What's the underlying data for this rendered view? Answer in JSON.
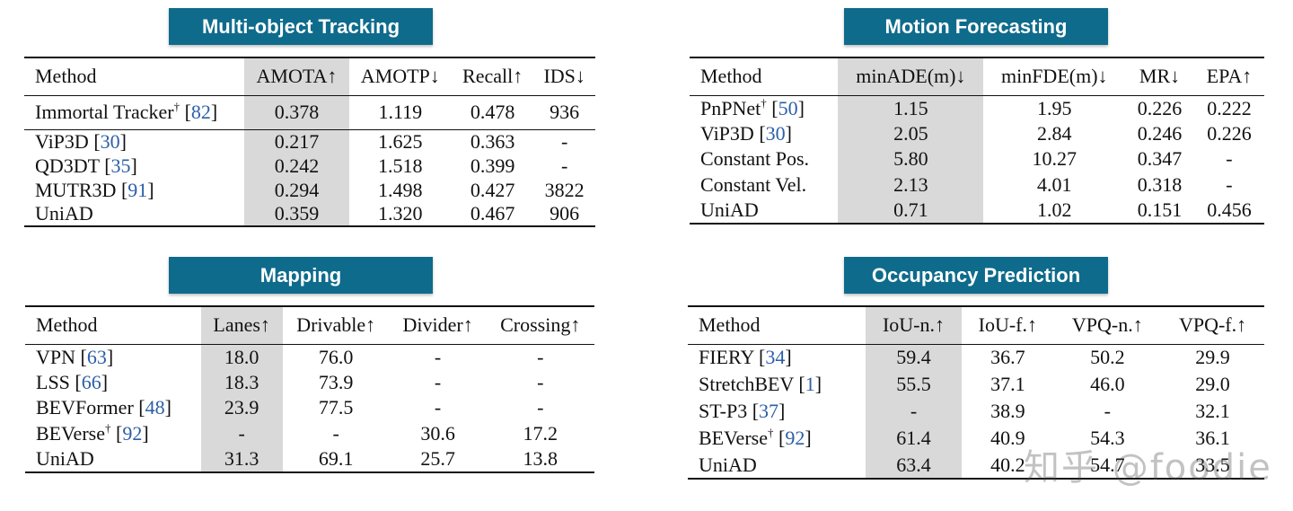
{
  "panels": {
    "tracking": {
      "title": "Multi-object Tracking",
      "headers": [
        "Method",
        "AMOTA↑",
        "AMOTP↓",
        "Recall↑",
        "IDS↓"
      ],
      "group1": [
        {
          "method": "Immortal Tracker",
          "sup": "†",
          "ref": "82",
          "vals": [
            "0.378",
            "1.119",
            "0.478",
            "936"
          ]
        }
      ],
      "group2": [
        {
          "method": "ViP3D",
          "ref": "30",
          "vals": [
            "0.217",
            "1.625",
            "0.363",
            "-"
          ]
        },
        {
          "method": "QD3DT",
          "ref": "35",
          "vals": [
            "0.242",
            "1.518",
            "0.399",
            "-"
          ]
        },
        {
          "method": "MUTR3D",
          "ref": "91",
          "vals": [
            "0.294",
            "1.498",
            "0.427",
            "3822"
          ]
        },
        {
          "method": "UniAD",
          "vals": [
            "0.359",
            "1.320",
            "0.467",
            "906"
          ],
          "bold": true
        }
      ]
    },
    "forecasting": {
      "title": "Motion Forecasting",
      "headers": [
        "Method",
        "minADE(m)↓",
        "minFDE(m)↓",
        "MR↓",
        "EPA↑"
      ],
      "rows": [
        {
          "method": "PnPNet",
          "sup": "†",
          "ref": "50",
          "vals": [
            "1.15",
            "1.95",
            "0.226",
            "0.222"
          ]
        },
        {
          "method": "ViP3D",
          "ref": "30",
          "vals": [
            "2.05",
            "2.84",
            "0.246",
            "0.226"
          ]
        },
        {
          "method": "Constant Pos.",
          "vals": [
            "5.80",
            "10.27",
            "0.347",
            "-"
          ]
        },
        {
          "method": "Constant Vel.",
          "vals": [
            "2.13",
            "4.01",
            "0.318",
            "-"
          ]
        },
        {
          "method": "UniAD",
          "vals": [
            "0.71",
            "1.02",
            "0.151",
            "0.456"
          ],
          "bold": true
        }
      ]
    },
    "mapping": {
      "title": "Mapping",
      "headers": [
        "Method",
        "Lanes↑",
        "Drivable↑",
        "Divider↑",
        "Crossing↑"
      ],
      "rows": [
        {
          "method": "VPN",
          "ref": "63",
          "vals": [
            "18.0",
            "76.0",
            "-",
            "-"
          ]
        },
        {
          "method": "LSS",
          "ref": "66",
          "vals": [
            "18.3",
            "73.9",
            "-",
            "-"
          ]
        },
        {
          "method": "BEVFormer",
          "ref": "48",
          "vals": [
            "23.9",
            "77.5",
            "-",
            "-"
          ],
          "boldcols": [
            1
          ]
        },
        {
          "method": "BEVerse",
          "sup": "†",
          "ref": "92",
          "vals": [
            "-",
            "-",
            "30.6",
            "17.2"
          ],
          "boldcols": [
            2,
            3
          ]
        },
        {
          "method": "UniAD",
          "vals": [
            "31.3",
            "69.1",
            "25.7",
            "13.8"
          ],
          "bold": true,
          "boldcols": [
            0
          ]
        }
      ]
    },
    "occupancy": {
      "title": "Occupancy Prediction",
      "headers": [
        "Method",
        "IoU-n.↑",
        "IoU-f.↑",
        "VPQ-n.↑",
        "VPQ-f.↑"
      ],
      "rows": [
        {
          "method": "FIERY",
          "ref": "34",
          "vals": [
            "59.4",
            "36.7",
            "50.2",
            "29.9"
          ]
        },
        {
          "method": "StretchBEV",
          "ref": "1",
          "vals": [
            "55.5",
            "37.1",
            "46.0",
            "29.0"
          ]
        },
        {
          "method": "ST-P3",
          "ref": "37",
          "vals": [
            "-",
            "38.9",
            "-",
            "32.1"
          ]
        },
        {
          "method": "BEVerse",
          "sup": "†",
          "ref": "92",
          "vals": [
            "61.4",
            "40.9",
            "54.3",
            "36.1"
          ],
          "boldcols": [
            1,
            3
          ]
        },
        {
          "method": "UniAD",
          "vals": [
            "63.4",
            "40.2",
            "54.7",
            "33.5"
          ],
          "bold": true,
          "boldcols": [
            0,
            2
          ]
        }
      ]
    }
  },
  "watermark": "知乎 @foodie",
  "colors": {
    "banner": "#0e6b8c",
    "highlight": "#d9d9d9",
    "ref": "#2b5ea8"
  }
}
